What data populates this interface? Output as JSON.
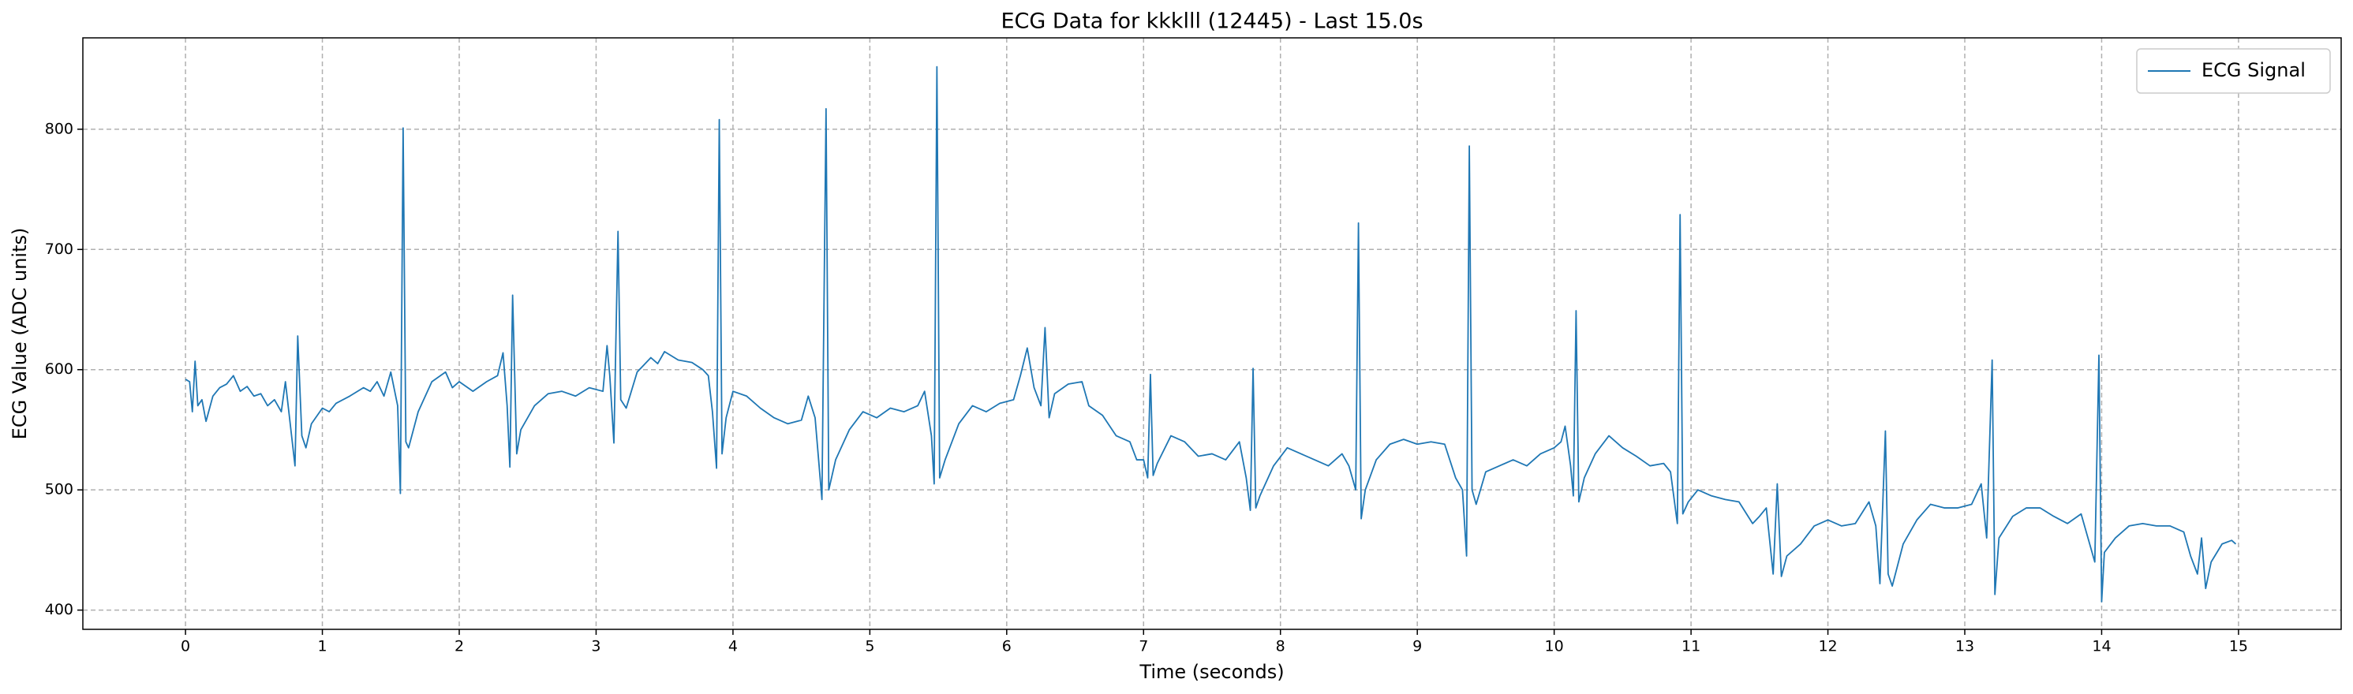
{
  "chart_data": {
    "type": "line",
    "title": "ECG Data for kkklll (12445) - Last 15.0s",
    "xlabel": "Time (seconds)",
    "ylabel": "ECG Value (ADC units)",
    "x": [
      0,
      0.03,
      0.05,
      0.07,
      0.09,
      0.12,
      0.15,
      0.2,
      0.25,
      0.3,
      0.35,
      0.4,
      0.45,
      0.5,
      0.55,
      0.6,
      0.65,
      0.7,
      0.73,
      0.76,
      0.8,
      0.82,
      0.85,
      0.88,
      0.92,
      1.0,
      1.05,
      1.1,
      1.2,
      1.3,
      1.35,
      1.4,
      1.45,
      1.5,
      1.55,
      1.57,
      1.59,
      1.61,
      1.63,
      1.7,
      1.8,
      1.9,
      1.95,
      2.0,
      2.1,
      2.2,
      2.28,
      2.32,
      2.35,
      2.37,
      2.39,
      2.42,
      2.45,
      2.55,
      2.65,
      2.75,
      2.85,
      2.95,
      3.05,
      3.08,
      3.1,
      3.13,
      3.16,
      3.18,
      3.22,
      3.3,
      3.4,
      3.45,
      3.5,
      3.6,
      3.7,
      3.78,
      3.82,
      3.85,
      3.88,
      3.9,
      3.92,
      3.95,
      4.0,
      4.1,
      4.2,
      4.3,
      4.4,
      4.5,
      4.55,
      4.6,
      4.65,
      4.68,
      4.7,
      4.75,
      4.85,
      4.95,
      5.05,
      5.15,
      5.25,
      5.35,
      5.4,
      5.45,
      5.47,
      5.49,
      5.51,
      5.55,
      5.65,
      5.75,
      5.85,
      5.95,
      6.05,
      6.1,
      6.15,
      6.2,
      6.25,
      6.28,
      6.31,
      6.35,
      6.45,
      6.55,
      6.6,
      6.7,
      6.8,
      6.9,
      6.95,
      7.0,
      7.03,
      7.05,
      7.07,
      7.1,
      7.2,
      7.3,
      7.4,
      7.5,
      7.6,
      7.7,
      7.75,
      7.78,
      7.8,
      7.82,
      7.85,
      7.95,
      8.05,
      8.15,
      8.25,
      8.35,
      8.45,
      8.5,
      8.55,
      8.57,
      8.59,
      8.62,
      8.7,
      8.8,
      8.9,
      9.0,
      9.1,
      9.2,
      9.28,
      9.33,
      9.36,
      9.38,
      9.4,
      9.43,
      9.5,
      9.6,
      9.7,
      9.8,
      9.9,
      10.0,
      10.05,
      10.08,
      10.12,
      10.14,
      10.16,
      10.18,
      10.22,
      10.3,
      10.4,
      10.5,
      10.6,
      10.7,
      10.8,
      10.85,
      10.9,
      10.92,
      10.94,
      10.98,
      11.05,
      11.15,
      11.25,
      11.35,
      11.45,
      11.5,
      11.55,
      11.6,
      11.63,
      11.66,
      11.7,
      11.8,
      11.9,
      12.0,
      12.1,
      12.2,
      12.3,
      12.35,
      12.38,
      12.42,
      12.44,
      12.47,
      12.55,
      12.65,
      12.75,
      12.85,
      12.95,
      13.05,
      13.12,
      13.16,
      13.2,
      13.22,
      13.25,
      13.35,
      13.45,
      13.55,
      13.65,
      13.75,
      13.85,
      13.9,
      13.95,
      13.98,
      14.0,
      14.02,
      14.1,
      14.2,
      14.3,
      14.4,
      14.5,
      14.6,
      14.65,
      14.7,
      14.73,
      14.76,
      14.8,
      14.88,
      14.95,
      14.98
    ],
    "series": [
      {
        "name": "ECG Signal",
        "color": "#1f77b4",
        "values": [
          592,
          590,
          565,
          607,
          570,
          575,
          557,
          578,
          585,
          588,
          595,
          582,
          586,
          578,
          580,
          570,
          575,
          565,
          590,
          560,
          520,
          628,
          545,
          535,
          555,
          568,
          565,
          572,
          578,
          585,
          582,
          590,
          578,
          598,
          570,
          497,
          801,
          540,
          535,
          565,
          590,
          598,
          585,
          590,
          582,
          590,
          595,
          614,
          570,
          519,
          662,
          530,
          550,
          570,
          580,
          582,
          578,
          585,
          582,
          620,
          595,
          539,
          715,
          575,
          568,
          598,
          610,
          605,
          615,
          608,
          606,
          600,
          595,
          565,
          518,
          808,
          530,
          560,
          582,
          578,
          568,
          560,
          555,
          558,
          578,
          560,
          492,
          817,
          500,
          525,
          550,
          565,
          560,
          568,
          565,
          570,
          582,
          545,
          505,
          852,
          510,
          525,
          555,
          570,
          565,
          572,
          575,
          595,
          618,
          585,
          570,
          635,
          560,
          580,
          588,
          590,
          570,
          562,
          545,
          540,
          525,
          525,
          510,
          596,
          512,
          522,
          545,
          540,
          528,
          530,
          525,
          540,
          510,
          483,
          601,
          485,
          495,
          520,
          535,
          530,
          525,
          520,
          530,
          520,
          500,
          722,
          476,
          500,
          525,
          538,
          542,
          538,
          540,
          538,
          510,
          500,
          445,
          786,
          500,
          488,
          515,
          520,
          525,
          520,
          530,
          535,
          540,
          553,
          520,
          495,
          649,
          490,
          510,
          530,
          545,
          535,
          528,
          520,
          522,
          515,
          472,
          729,
          480,
          490,
          500,
          495,
          492,
          490,
          472,
          478,
          485,
          430,
          505,
          428,
          445,
          455,
          470,
          475,
          470,
          472,
          490,
          470,
          422,
          549,
          430,
          420,
          455,
          475,
          488,
          485,
          485,
          488,
          505,
          460,
          608,
          413,
          460,
          478,
          485,
          485,
          478,
          472,
          480,
          460,
          440,
          612,
          407,
          448,
          460,
          470,
          472,
          470,
          470,
          465,
          445,
          430,
          460,
          418,
          440,
          455,
          458,
          455
        ]
      }
    ],
    "xlim": [
      -0.75,
      15.75
    ],
    "ylim": [
      384,
      876
    ],
    "xticks": [
      0,
      1,
      2,
      3,
      4,
      5,
      6,
      7,
      8,
      9,
      10,
      11,
      12,
      13,
      14,
      15
    ],
    "yticks": [
      400,
      500,
      600,
      700,
      800
    ],
    "grid": true,
    "legend": "upper right"
  }
}
